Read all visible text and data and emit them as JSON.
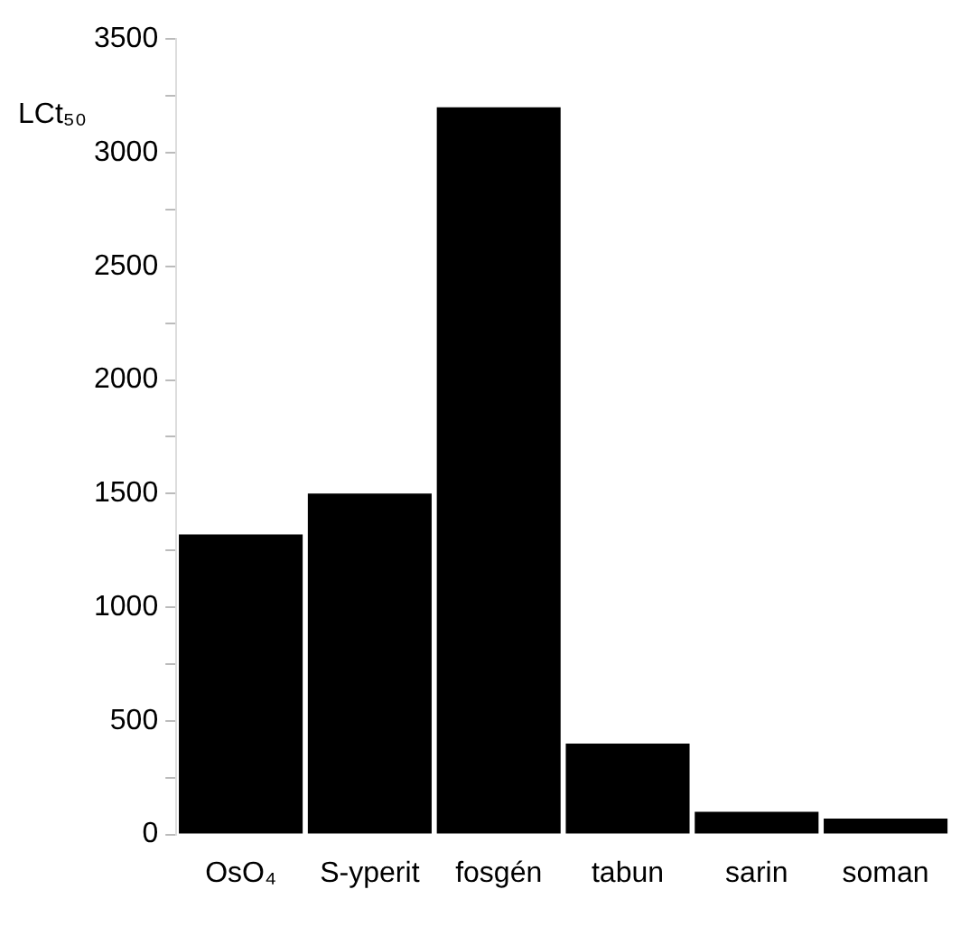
{
  "chart_data": {
    "type": "bar",
    "ylabel": "LCt₅₀",
    "categories": [
      "OsO₄",
      "S-yperit",
      "fosgén",
      "tabun",
      "sarin",
      "soman"
    ],
    "values": [
      1320,
      1500,
      3200,
      400,
      100,
      70
    ],
    "color": "#000000",
    "ylim": [
      0,
      3500
    ],
    "yticks": [
      0,
      {
        "value": 250,
        "label": null
      },
      500,
      {
        "value": 750,
        "label": null
      },
      1000,
      {
        "value": 1250,
        "label": null
      },
      1500,
      {
        "value": 1750,
        "label": null
      },
      2000,
      {
        "value": 2250,
        "label": null
      },
      2500,
      {
        "value": 2750,
        "label": null
      },
      3000,
      {
        "value": 3250,
        "label": null
      },
      3500
    ],
    "grid": false,
    "legend": false
  }
}
